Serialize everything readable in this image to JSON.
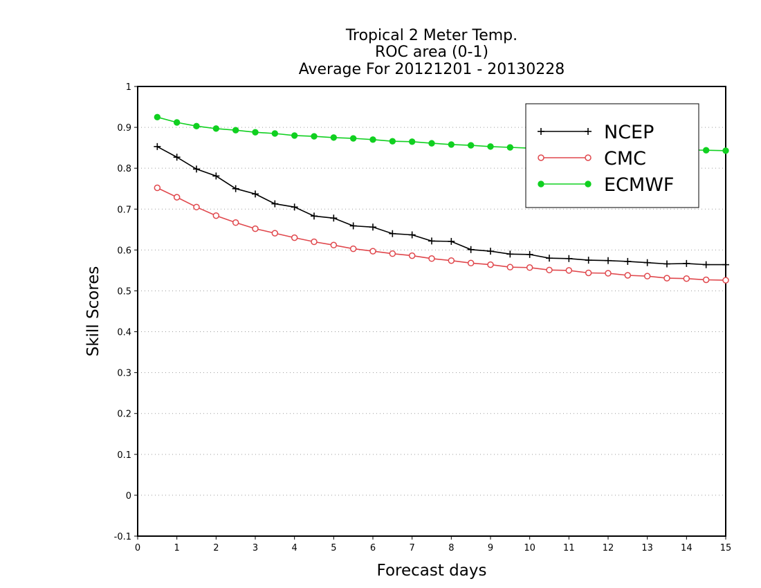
{
  "chart_data": {
    "type": "line",
    "title_lines": [
      "Tropical 2 Meter Temp.",
      "ROC area (0-1)",
      "Average For 20121201 - 20130228"
    ],
    "xlabel": "Forecast days",
    "ylabel": "Skill Scores",
    "xlim": [
      0,
      15
    ],
    "ylim": [
      -0.1,
      1
    ],
    "xticks": [
      "0",
      "1",
      "2",
      "3",
      "4",
      "5",
      "6",
      "7",
      "8",
      "9",
      "10",
      "11",
      "12",
      "13",
      "14",
      "15"
    ],
    "yticks": [
      "-0.1",
      "0",
      "0.1",
      "0.2",
      "0.3",
      "0.4",
      "0.5",
      "0.6",
      "0.7",
      "0.8",
      "0.9",
      "1"
    ],
    "grid": "horizontal dotted",
    "legend_position": "top-right",
    "x": [
      0.5,
      1,
      1.5,
      2,
      2.5,
      3,
      3.5,
      4,
      4.5,
      5,
      5.5,
      6,
      6.5,
      7,
      7.5,
      8,
      8.5,
      9,
      9.5,
      10,
      10.5,
      11,
      11.5,
      12,
      12.5,
      13,
      13.5,
      14,
      14.5,
      15
    ],
    "series": [
      {
        "name": "NCEP",
        "color": "#000000",
        "marker": "plus",
        "values": [
          0.853,
          0.827,
          0.798,
          0.781,
          0.75,
          0.737,
          0.713,
          0.705,
          0.683,
          0.678,
          0.659,
          0.656,
          0.64,
          0.637,
          0.622,
          0.621,
          0.601,
          0.597,
          0.59,
          0.589,
          0.58,
          0.579,
          0.575,
          0.574,
          0.572,
          0.569,
          0.566,
          0.567,
          0.564,
          0.564
        ]
      },
      {
        "name": "CMC",
        "color": "#e0474c",
        "marker": "open-circle",
        "values": [
          0.752,
          0.729,
          0.705,
          0.684,
          0.667,
          0.652,
          0.641,
          0.63,
          0.62,
          0.612,
          0.603,
          0.597,
          0.591,
          0.586,
          0.579,
          0.574,
          0.568,
          0.564,
          0.558,
          0.557,
          0.551,
          0.55,
          0.544,
          0.543,
          0.538,
          0.536,
          0.531,
          0.53,
          0.527,
          0.526
        ]
      },
      {
        "name": "ECMWF",
        "color": "#10d020",
        "marker": "filled-circle",
        "values": [
          0.925,
          0.912,
          0.903,
          0.897,
          0.893,
          0.888,
          0.885,
          0.88,
          0.878,
          0.875,
          0.873,
          0.87,
          0.866,
          0.865,
          0.861,
          0.858,
          0.856,
          0.853,
          0.851,
          0.849,
          0.848,
          0.847,
          0.847,
          0.846,
          0.846,
          0.845,
          0.845,
          0.845,
          0.844,
          0.843
        ]
      }
    ]
  }
}
